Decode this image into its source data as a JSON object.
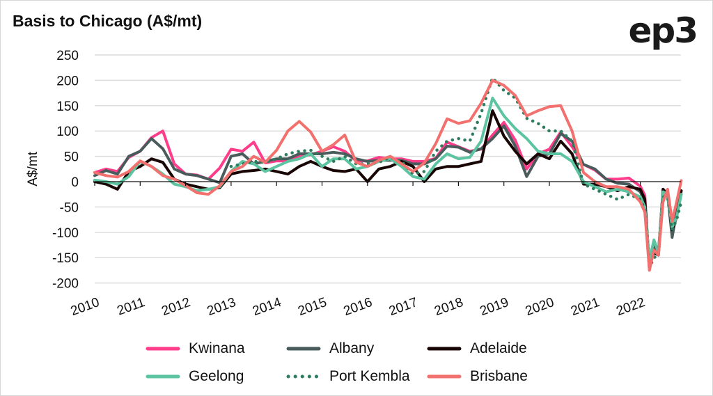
{
  "title": "Basis to Chicago (A$/mt)",
  "logo": "ep3",
  "chart_data": {
    "type": "line",
    "title": "Basis to Chicago (A$/mt)",
    "xlabel": "",
    "ylabel": "A$/mt",
    "ylim": [
      -200,
      250
    ],
    "xlim": [
      2010,
      2023
    ],
    "yticks": [
      "250",
      "200",
      "150",
      "100",
      "50",
      "0",
      "-50",
      "-100",
      "-150",
      "-200"
    ],
    "ytick_values": [
      250,
      200,
      150,
      100,
      50,
      0,
      -50,
      -100,
      -150,
      -200
    ],
    "xticks": [
      "2010",
      "2011",
      "2012",
      "2013",
      "2014",
      "2015",
      "2016",
      "2017",
      "2018",
      "2019",
      "2020",
      "2021",
      "2022"
    ],
    "grid": true,
    "legend_position": "bottom",
    "x": [
      2010,
      2010.25,
      2010.5,
      2010.75,
      2011,
      2011.25,
      2011.5,
      2011.75,
      2012,
      2012.25,
      2012.5,
      2012.75,
      2013,
      2013.25,
      2013.5,
      2013.75,
      2014,
      2014.25,
      2014.5,
      2014.75,
      2015,
      2015.25,
      2015.5,
      2015.75,
      2016,
      2016.25,
      2016.5,
      2016.75,
      2017,
      2017.25,
      2017.5,
      2017.75,
      2018,
      2018.25,
      2018.5,
      2018.75,
      2019,
      2019.25,
      2019.5,
      2019.75,
      2020,
      2020.25,
      2020.5,
      2020.75,
      2021,
      2021.25,
      2021.5,
      2021.75,
      2022,
      2022.1,
      2022.2,
      2022.3,
      2022.4,
      2022.5,
      2022.6,
      2022.7,
      2022.8,
      2022.9
    ],
    "series": [
      {
        "name": "Kwinana",
        "color": "#ff3d8b",
        "style": "solid",
        "values": [
          18,
          25,
          20,
          48,
          60,
          87,
          100,
          35,
          15,
          13,
          5,
          27,
          64,
          60,
          78,
          37,
          41,
          41,
          50,
          53,
          60,
          69,
          60,
          41,
          41,
          48,
          45,
          45,
          40,
          40,
          46,
          78,
          69,
          60,
          64,
          92,
          117,
          82,
          25,
          55,
          64,
          98,
          69,
          34,
          23,
          5,
          5,
          7,
          -9,
          -27,
          -174,
          -124,
          -137,
          -18,
          -27,
          -92,
          -55,
          -18
        ]
      },
      {
        "name": "Albany",
        "color": "#4a5b5c",
        "style": "solid",
        "values": [
          12,
          22,
          15,
          50,
          60,
          85,
          65,
          25,
          15,
          12,
          5,
          -2,
          50,
          55,
          35,
          40,
          45,
          45,
          55,
          55,
          55,
          58,
          55,
          45,
          40,
          42,
          42,
          42,
          35,
          35,
          45,
          70,
          68,
          58,
          65,
          85,
          110,
          70,
          10,
          50,
          55,
          95,
          80,
          34,
          25,
          5,
          -3,
          -5,
          -20,
          -40,
          -172,
          -130,
          -140,
          -15,
          -25,
          -110,
          -60,
          -25
        ]
      },
      {
        "name": "Adelaide",
        "color": "#1a0505",
        "style": "solid",
        "values": [
          0,
          -5,
          -15,
          20,
          30,
          45,
          38,
          5,
          -5,
          -10,
          -15,
          -12,
          15,
          20,
          22,
          25,
          20,
          15,
          30,
          40,
          30,
          22,
          20,
          25,
          0,
          25,
          30,
          40,
          30,
          0,
          25,
          30,
          30,
          35,
          40,
          140,
          90,
          60,
          35,
          55,
          45,
          80,
          55,
          -5,
          -5,
          -10,
          -18,
          -10,
          -15,
          -35,
          -165,
          -140,
          -145,
          -15,
          -25,
          -95,
          -70,
          -18
        ]
      },
      {
        "name": "Geelong",
        "color": "#5cc4a0",
        "style": "solid",
        "values": [
          3,
          0,
          -5,
          10,
          40,
          30,
          15,
          -5,
          -10,
          -18,
          -15,
          -10,
          20,
          40,
          35,
          20,
          30,
          40,
          45,
          55,
          30,
          45,
          45,
          25,
          30,
          40,
          45,
          30,
          10,
          5,
          35,
          55,
          45,
          48,
          80,
          165,
          130,
          105,
          85,
          60,
          55,
          55,
          40,
          0,
          -10,
          -20,
          -15,
          -20,
          -30,
          -50,
          -155,
          -115,
          -140,
          -20,
          -25,
          -90,
          -70,
          -25
        ]
      },
      {
        "name": "Port Kembla",
        "color": "#2e7d5e",
        "style": "dotted",
        "values": [
          null,
          null,
          null,
          null,
          null,
          null,
          null,
          null,
          null,
          null,
          null,
          null,
          30,
          35,
          40,
          38,
          45,
          55,
          60,
          62,
          50,
          40,
          50,
          35,
          35,
          38,
          48,
          40,
          15,
          20,
          60,
          80,
          85,
          80,
          135,
          205,
          180,
          165,
          125,
          115,
          100,
          100,
          80,
          -5,
          -15,
          -25,
          -35,
          -25,
          -35,
          -55,
          -170,
          -150,
          -145,
          -30,
          -30,
          -95,
          -75,
          -40
        ]
      },
      {
        "name": "Brisbane",
        "color": "#f2706e",
        "style": "solid",
        "values": [
          18,
          12,
          9,
          20,
          41,
          30,
          12,
          5,
          -8,
          -22,
          -25,
          -8,
          20,
          30,
          50,
          38,
          62,
          100,
          119,
          98,
          60,
          73,
          92,
          38,
          30,
          42,
          50,
          35,
          20,
          37,
          75,
          124,
          115,
          120,
          155,
          200,
          190,
          170,
          130,
          140,
          148,
          150,
          100,
          18,
          0,
          -10,
          -10,
          -15,
          -40,
          -60,
          -175,
          -135,
          -145,
          -40,
          -15,
          -78,
          -40,
          2
        ]
      }
    ]
  }
}
